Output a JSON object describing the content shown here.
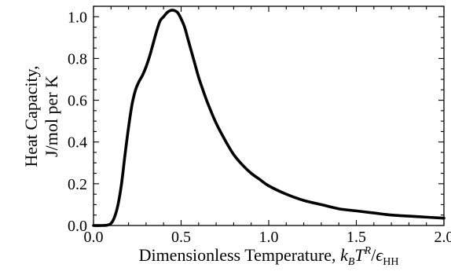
{
  "chart_data": {
    "type": "line",
    "title": "",
    "xlabel": {
      "prefix": "Dimensionless Temperature, ",
      "k": "k",
      "k_sub": "B",
      "T": "T",
      "T_sup": "R",
      "slash": "/",
      "eps": "ϵ",
      "eps_sub": "HH"
    },
    "ylabel": [
      "Heat Capacity,",
      "J/mol per K"
    ],
    "xlim": [
      0.0,
      2.0
    ],
    "ylim": [
      0.0,
      1.05
    ],
    "xticks": [
      "0.0",
      "0.5",
      "1.0",
      "1.5",
      "2.0"
    ],
    "yticks": [
      "0.0",
      "0.2",
      "0.4",
      "0.6",
      "0.8",
      "1.0"
    ],
    "grid": false,
    "line_color": "#000000",
    "series": [
      {
        "x": [
          0.0,
          0.05,
          0.08,
          0.1,
          0.12,
          0.14,
          0.16,
          0.18,
          0.2,
          0.22,
          0.24,
          0.26,
          0.28,
          0.3,
          0.32,
          0.34,
          0.36,
          0.38,
          0.4,
          0.42,
          0.44,
          0.46,
          0.48,
          0.5,
          0.52,
          0.54,
          0.56,
          0.58,
          0.6,
          0.62,
          0.65,
          0.7,
          0.75,
          0.8,
          0.85,
          0.9,
          0.95,
          1.0,
          1.1,
          1.2,
          1.3,
          1.4,
          1.5,
          1.6,
          1.7,
          1.8,
          1.9,
          2.0
        ],
        "y": [
          0.0,
          0.0,
          0.002,
          0.01,
          0.04,
          0.1,
          0.2,
          0.34,
          0.47,
          0.58,
          0.65,
          0.69,
          0.72,
          0.76,
          0.81,
          0.87,
          0.93,
          0.98,
          1.0,
          1.02,
          1.03,
          1.03,
          1.02,
          0.99,
          0.95,
          0.89,
          0.83,
          0.77,
          0.71,
          0.66,
          0.59,
          0.49,
          0.41,
          0.34,
          0.29,
          0.25,
          0.22,
          0.19,
          0.15,
          0.12,
          0.1,
          0.08,
          0.07,
          0.06,
          0.05,
          0.045,
          0.04,
          0.035
        ]
      }
    ]
  }
}
